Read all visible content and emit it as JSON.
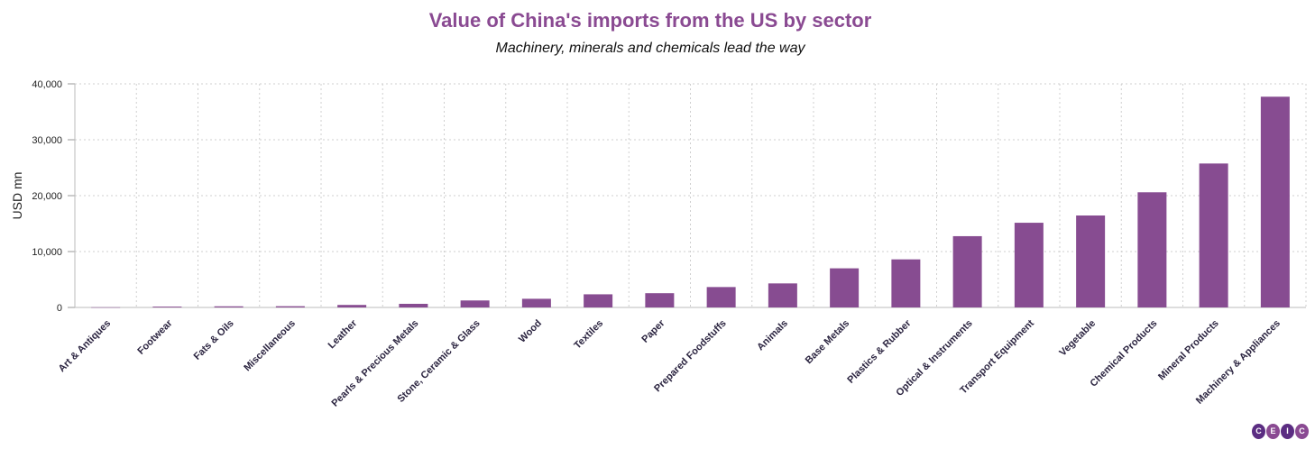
{
  "chart_data": {
    "type": "bar",
    "title": "Value of China's imports from the US by sector",
    "subtitle": "Machinery, minerals and chemicals lead the way",
    "xlabel": "",
    "ylabel": "USD mn",
    "ylim": [
      0,
      40000
    ],
    "yticks": [
      0,
      10000,
      20000,
      30000,
      40000
    ],
    "ytick_labels": [
      "0",
      "10,000",
      "20,000",
      "30,000",
      "40,000"
    ],
    "grid": true,
    "bar_color": "#874c91",
    "categories": [
      "Art & Antiques",
      "Footwear",
      "Fats & Oils",
      "Miscellaneous",
      "Leather",
      "Pearls & Precious Metals",
      "Stone, Ceramic & Glass",
      "Wood",
      "Textiles",
      "Paper",
      "Prepared Foodstuffs",
      "Animals",
      "Base Metals",
      "Plastics & Rubber",
      "Optical & Instruments",
      "Transport Equipment",
      "Vegetable",
      "Chemical Products",
      "Mineral Products",
      "Machinery & Appliances"
    ],
    "values": [
      30,
      150,
      200,
      220,
      450,
      650,
      1250,
      1550,
      2350,
      2550,
      3650,
      4300,
      7000,
      8600,
      12750,
      15150,
      16450,
      20600,
      25750,
      37700
    ]
  },
  "logo": {
    "letters": [
      "C",
      "E",
      "I",
      "C"
    ]
  }
}
